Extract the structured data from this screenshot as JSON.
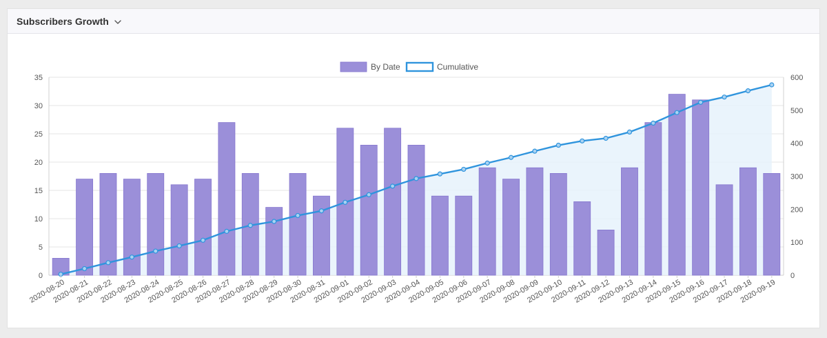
{
  "header": {
    "title": "Subscribers Growth",
    "dropdown_icon": "chevron-down-icon"
  },
  "colors": {
    "bar_fill": "#9b8fd9",
    "bar_stroke": "#8677cf",
    "line": "#2f94dd",
    "area_fill": "#e6f2fb",
    "grid": "#e6e6e6",
    "text": "#555555"
  },
  "chart_data": {
    "type": "bar",
    "combo": "bar + line (cumulative on secondary axis)",
    "categories": [
      "2020-08-20",
      "2020-08-21",
      "2020-08-22",
      "2020-08-23",
      "2020-08-24",
      "2020-08-25",
      "2020-08-26",
      "2020-08-27",
      "2020-08-28",
      "2020-08-29",
      "2020-08-30",
      "2020-08-31",
      "2020-09-01",
      "2020-09-02",
      "2020-09-03",
      "2020-09-04",
      "2020-09-05",
      "2020-09-06",
      "2020-09-07",
      "2020-09-08",
      "2020-09-09",
      "2020-09-10",
      "2020-09-11",
      "2020-09-12",
      "2020-09-13",
      "2020-09-14",
      "2020-09-15",
      "2020-09-16",
      "2020-09-17",
      "2020-09-18",
      "2020-09-19"
    ],
    "series": [
      {
        "name": "By Date",
        "type": "bar",
        "axis": "left",
        "values": [
          3,
          17,
          18,
          17,
          18,
          16,
          17,
          27,
          18,
          12,
          18,
          14,
          26,
          23,
          26,
          23,
          14,
          14,
          19,
          17,
          19,
          18,
          13,
          8,
          19,
          27,
          32,
          31,
          16,
          19,
          18
        ]
      },
      {
        "name": "Cumulative",
        "type": "area-line",
        "axis": "right",
        "values": [
          3,
          20,
          38,
          55,
          73,
          89,
          106,
          133,
          151,
          163,
          181,
          195,
          221,
          244,
          270,
          293,
          307,
          321,
          340,
          357,
          376,
          394,
          407,
          415,
          434,
          461,
          493,
          524,
          540,
          559,
          577
        ]
      }
    ],
    "y_left": {
      "min": 0,
      "max": 35,
      "ticks": [
        0,
        5,
        10,
        15,
        20,
        25,
        30,
        35
      ]
    },
    "y_right": {
      "min": 0,
      "max": 600,
      "ticks": [
        0,
        100,
        200,
        300,
        400,
        500,
        600
      ]
    },
    "legend_position": "top-center",
    "grid": true,
    "xlabel": "",
    "ylabel": ""
  }
}
